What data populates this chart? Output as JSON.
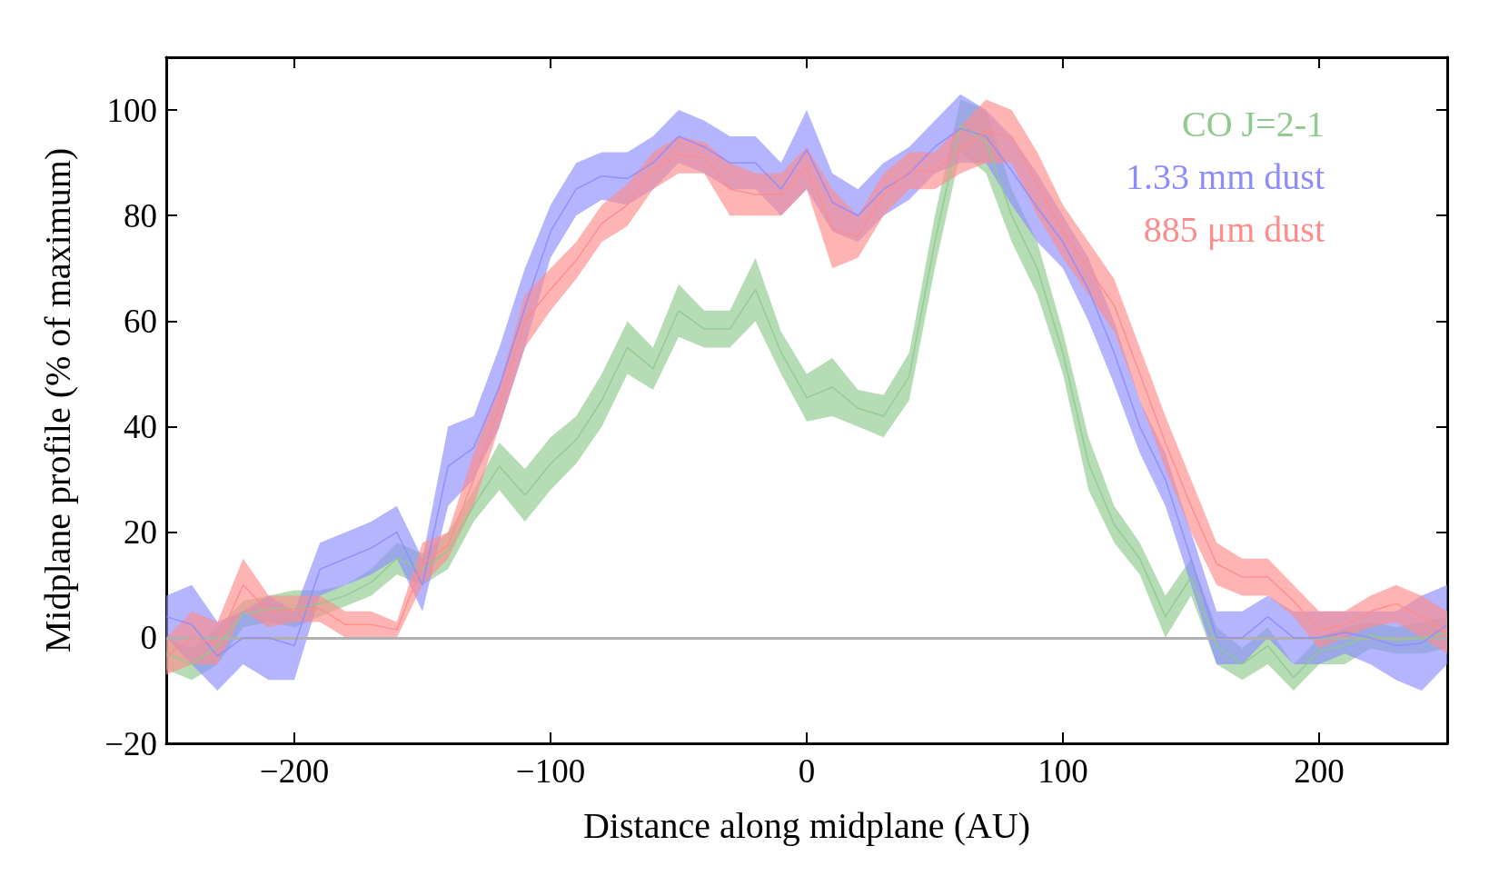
{
  "chart_data": {
    "type": "line",
    "xlabel": "Distance along midplane (AU)",
    "ylabel": "Midplane profile (% of maximum)",
    "x": [
      -250,
      -240,
      -230,
      -220,
      -210,
      -200,
      -190,
      -180,
      -170,
      -160,
      -150,
      -140,
      -130,
      -120,
      -110,
      -100,
      -90,
      -80,
      -70,
      -60,
      -50,
      -40,
      -30,
      -20,
      -10,
      0,
      10,
      20,
      30,
      40,
      50,
      60,
      70,
      80,
      90,
      100,
      110,
      120,
      130,
      140,
      150,
      160,
      170,
      180,
      190,
      200,
      210,
      220,
      230,
      240,
      250
    ],
    "series": [
      {
        "name": "CO J=2-1",
        "color": "#8fca8f",
        "values": [
          -3,
          -5,
          -1.5,
          4.5,
          5.5,
          5.5,
          6.5,
          8,
          10.5,
          15,
          13,
          16.5,
          25,
          32.5,
          27,
          33,
          37.5,
          45,
          55,
          51,
          62,
          58.5,
          58.5,
          66,
          54,
          45.5,
          47.5,
          43.5,
          42,
          49.5,
          75,
          97,
          94,
          80,
          70,
          54,
          33,
          21.5,
          15,
          4,
          11.5,
          -1.5,
          -5,
          -1.5,
          -7.5,
          -2.5,
          -1.5,
          0.5,
          -0.5,
          0,
          1
        ],
        "lower": [
          -6,
          -8,
          -5,
          2,
          3,
          2,
          4,
          6,
          8,
          12,
          10,
          13,
          22,
          28,
          22,
          28,
          33,
          40,
          50,
          47,
          57,
          55,
          55,
          60,
          50,
          41,
          42,
          40,
          38,
          45,
          70,
          92,
          88,
          75,
          65,
          50,
          28,
          18,
          12,
          0,
          8,
          -5,
          -8,
          -5,
          -10,
          -5,
          -5,
          -2,
          -3,
          -3,
          -2
        ],
        "upper": [
          0,
          -2,
          2,
          7,
          8,
          9,
          9,
          10,
          13,
          18,
          16,
          20,
          28,
          37,
          32,
          38,
          42,
          50,
          60,
          55,
          67,
          62,
          62,
          72,
          58,
          50,
          53,
          47,
          46,
          54,
          80,
          102,
          100,
          85,
          75,
          58,
          38,
          25,
          18,
          8,
          15,
          2,
          -2,
          2,
          -5,
          0,
          2,
          3,
          2,
          3,
          4
        ]
      },
      {
        "name": "1.33 mm dust",
        "color": "#8c8cff",
        "values": [
          4,
          2.5,
          -3.5,
          0,
          0,
          -1.5,
          13,
          15,
          17,
          20,
          10,
          32.5,
          36,
          47.5,
          62.5,
          77,
          85,
          87.5,
          87,
          90,
          95,
          93,
          90,
          90,
          85,
          92.5,
          82.5,
          80,
          85,
          88,
          93,
          96.5,
          95,
          88.5,
          81.5,
          75,
          66,
          54,
          40,
          30,
          15,
          0,
          0,
          4,
          0,
          0,
          1,
          0,
          -1.5,
          -1,
          2.5
        ],
        "lower": [
          0,
          -5,
          -10,
          -5,
          -8,
          -8,
          8,
          10,
          12,
          15,
          5,
          25,
          30,
          40,
          55,
          72,
          80,
          83,
          82,
          85,
          90,
          88,
          85,
          85,
          80,
          85,
          77,
          75,
          80,
          83,
          88,
          90,
          90,
          82,
          75,
          70,
          60,
          48,
          35,
          25,
          10,
          -5,
          -5,
          0,
          -5,
          -5,
          -3,
          -5,
          -8,
          -10,
          -5
        ],
        "upper": [
          8,
          10,
          3,
          5,
          8,
          5,
          18,
          20,
          22,
          25,
          15,
          40,
          42,
          55,
          70,
          82,
          90,
          92,
          92,
          95,
          100,
          98,
          95,
          95,
          90,
          100,
          88,
          85,
          90,
          93,
          98,
          103,
          100,
          95,
          88,
          80,
          72,
          60,
          45,
          35,
          20,
          5,
          5,
          8,
          5,
          5,
          5,
          5,
          5,
          8,
          10
        ]
      },
      {
        "name": "885 μm dust",
        "color": "#ff8c8c",
        "values": [
          -3.5,
          0,
          -1,
          10,
          5,
          5.5,
          5.5,
          2.5,
          2.5,
          1.5,
          14,
          17.5,
          30,
          44,
          60,
          66,
          71.5,
          78.5,
          82,
          88.5,
          91.5,
          91,
          85,
          84,
          84,
          89,
          77.5,
          76,
          84,
          88.5,
          88.5,
          92.5,
          96,
          95,
          86,
          77,
          70,
          63,
          50,
          37,
          25,
          14,
          11.5,
          11.5,
          7,
          1.5,
          2.5,
          5,
          6.5,
          4,
          1
        ],
        "lower": [
          -7,
          -5,
          -5,
          5,
          2,
          3,
          3,
          0,
          0,
          0,
          10,
          15,
          25,
          40,
          55,
          62,
          68,
          75,
          78,
          85,
          88,
          88,
          80,
          80,
          80,
          85,
          70,
          72,
          80,
          85,
          85,
          88,
          90,
          90,
          80,
          72,
          65,
          58,
          45,
          32,
          20,
          10,
          8,
          8,
          4,
          -2,
          0,
          2,
          3,
          0,
          -3
        ],
        "upper": [
          0,
          5,
          3,
          15,
          8,
          8,
          8,
          5,
          5,
          3,
          18,
          20,
          35,
          48,
          65,
          70,
          75,
          82,
          86,
          92,
          95,
          94,
          90,
          88,
          88,
          93,
          85,
          80,
          88,
          92,
          92,
          97,
          102,
          100,
          92,
          82,
          75,
          68,
          55,
          42,
          30,
          18,
          15,
          15,
          10,
          5,
          5,
          8,
          10,
          8,
          5
        ]
      }
    ],
    "xlim": [
      -250,
      250
    ],
    "xticks": [
      -200,
      -100,
      0,
      100,
      200
    ],
    "ylim": [
      -20,
      110
    ],
    "yticks": [
      -20,
      0,
      20,
      40,
      60,
      80,
      100
    ],
    "ref_lines": [
      {
        "axis": "y",
        "value": 0,
        "color": "#b0b0b0"
      }
    ],
    "legend": "top right",
    "grid": false
  }
}
